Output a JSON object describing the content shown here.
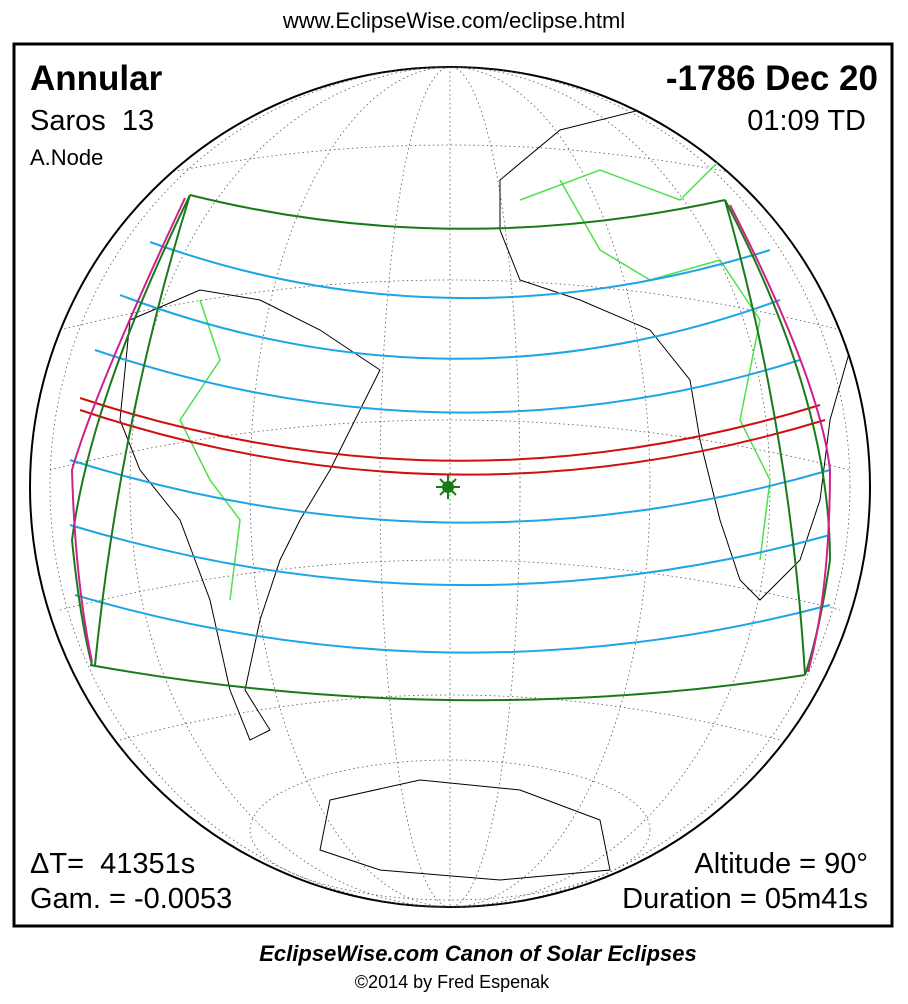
{
  "header": {
    "url": "www.EclipseWise.com/eclipse.html"
  },
  "eclipse": {
    "type": "Annular",
    "saros": "Saros  13",
    "node": "A.Node",
    "date": "-1786 Dec 20",
    "time": "01:09 TD",
    "delta_t": "ΔT=  41351s",
    "gamma": "Gam. = -0.0053",
    "altitude": "Altitude = 90°",
    "duration": "Duration = 05m41s"
  },
  "footer": {
    "title": "EclipseWise.com Canon of Solar Eclipses",
    "credit": "©2014 by Fred Espenak"
  }
}
